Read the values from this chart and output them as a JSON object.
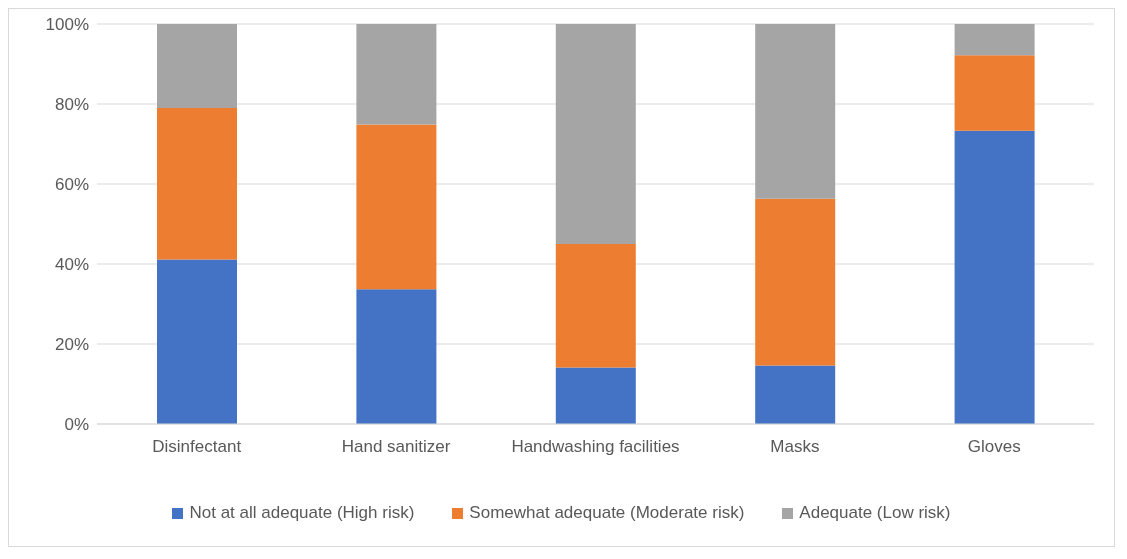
{
  "chart_data": {
    "type": "bar",
    "stacked": true,
    "categories": [
      "Disinfectant",
      "Hand sanitizer",
      "Handwashing facilities",
      "Masks",
      "Gloves"
    ],
    "series": [
      {
        "name": "Not at all adequate (High risk)",
        "color": "#4472c4",
        "values": [
          41.1,
          33.7,
          14.1,
          14.6,
          73.3
        ]
      },
      {
        "name": "Somewhat adequate (Moderate risk)",
        "color": "#ed7d31",
        "values": [
          37.9,
          41.2,
          30.9,
          41.7,
          18.9
        ]
      },
      {
        "name": "Adequate (Low risk)",
        "color": "#a5a5a5",
        "values": [
          21.0,
          25.1,
          55.0,
          43.7,
          7.8
        ]
      }
    ],
    "ylim": [
      0,
      100
    ],
    "yticks": [
      {
        "value": 0,
        "label": "0%"
      },
      {
        "value": 20,
        "label": "20%"
      },
      {
        "value": 40,
        "label": "40%"
      },
      {
        "value": 60,
        "label": "60%"
      },
      {
        "value": 80,
        "label": "80%"
      },
      {
        "value": 100,
        "label": "100%"
      }
    ],
    "grid": "y",
    "legend": "bottom"
  }
}
